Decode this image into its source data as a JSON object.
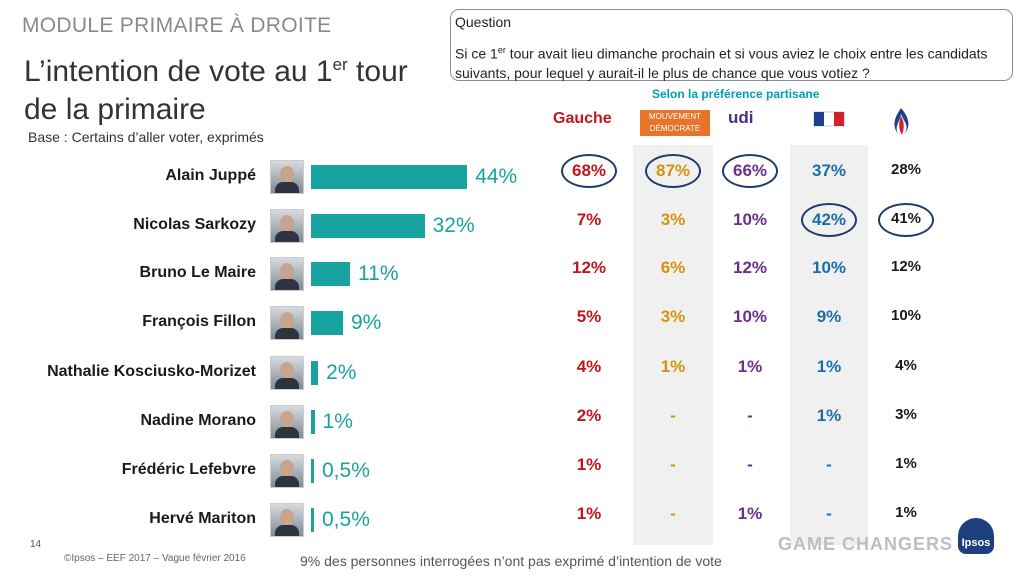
{
  "header": {
    "module": "MODULE PRIMAIRE À DROITE",
    "title_prefix": "L’intention de vote au 1",
    "title_sup": "er",
    "title_suffix": " tour",
    "title_line2": "de la primaire",
    "base": "Base : Certains d’aller voter, exprimés"
  },
  "question": {
    "label": "Question",
    "text_a": "Si ce 1",
    "text_sup": "er",
    "text_b": " tour avait lieu dimanche prochain et si vous aviez le choix entre les candidats suivants, pour lequel y aurait-il le plus de chance que vous votiez ?"
  },
  "partisan": {
    "subtitle": "Selon la préférence partisane",
    "columns": [
      {
        "label": "Gauche",
        "color": "#c0161f"
      },
      {
        "logo_text": "MOUVEMENT DÉMOCRATE",
        "color": "#d4930d"
      },
      {
        "logo_text": "udi",
        "color": "#6a2f8f"
      },
      {
        "logo_text": "les Républicains",
        "color": "#1a6fa8"
      },
      {
        "logo_text": "FRONT NATIONAL",
        "color": "#1a1a1a"
      }
    ]
  },
  "chart_data": {
    "type": "bar",
    "orientation": "horizontal",
    "categories": [
      "Alain Juppé",
      "Nicolas Sarkozy",
      "Bruno Le Maire",
      "François Fillon",
      "Nathalie Kosciusko-Morizet",
      "Nadine Morano",
      "Frédéric Lefebvre",
      "Hervé Mariton"
    ],
    "values": [
      44,
      32,
      11,
      9,
      2,
      1,
      0.5,
      0.5
    ],
    "value_labels": [
      "44%",
      "32%",
      "11%",
      "9%",
      "2%",
      "1%",
      "0,5%",
      "0,5%"
    ],
    "bar_color": "#17a3a0"
  },
  "table": {
    "rows": [
      [
        "68%",
        "87%",
        "66%",
        "37%",
        "28%"
      ],
      [
        "7%",
        "3%",
        "10%",
        "42%",
        "41%"
      ],
      [
        "12%",
        "6%",
        "12%",
        "10%",
        "12%"
      ],
      [
        "5%",
        "3%",
        "10%",
        "9%",
        "10%"
      ],
      [
        "4%",
        "1%",
        "1%",
        "1%",
        "4%"
      ],
      [
        "2%",
        "-",
        "-",
        "1%",
        "3%"
      ],
      [
        "1%",
        "-",
        "-",
        "-",
        "1%"
      ],
      [
        "1%",
        "-",
        "1%",
        "-",
        "1%"
      ]
    ],
    "circled": [
      [
        0,
        0
      ],
      [
        0,
        1
      ],
      [
        0,
        2
      ],
      [
        1,
        3
      ],
      [
        1,
        4
      ]
    ]
  },
  "footer": {
    "page": "14",
    "copyright": "©Ipsos – EEF 2017 – Vague février 2016",
    "note": "9% des personnes interrogées n’ont pas exprimé d’intention de vote",
    "brand_tagline": "GAME CHANGERS",
    "brand": "Ipsos"
  }
}
